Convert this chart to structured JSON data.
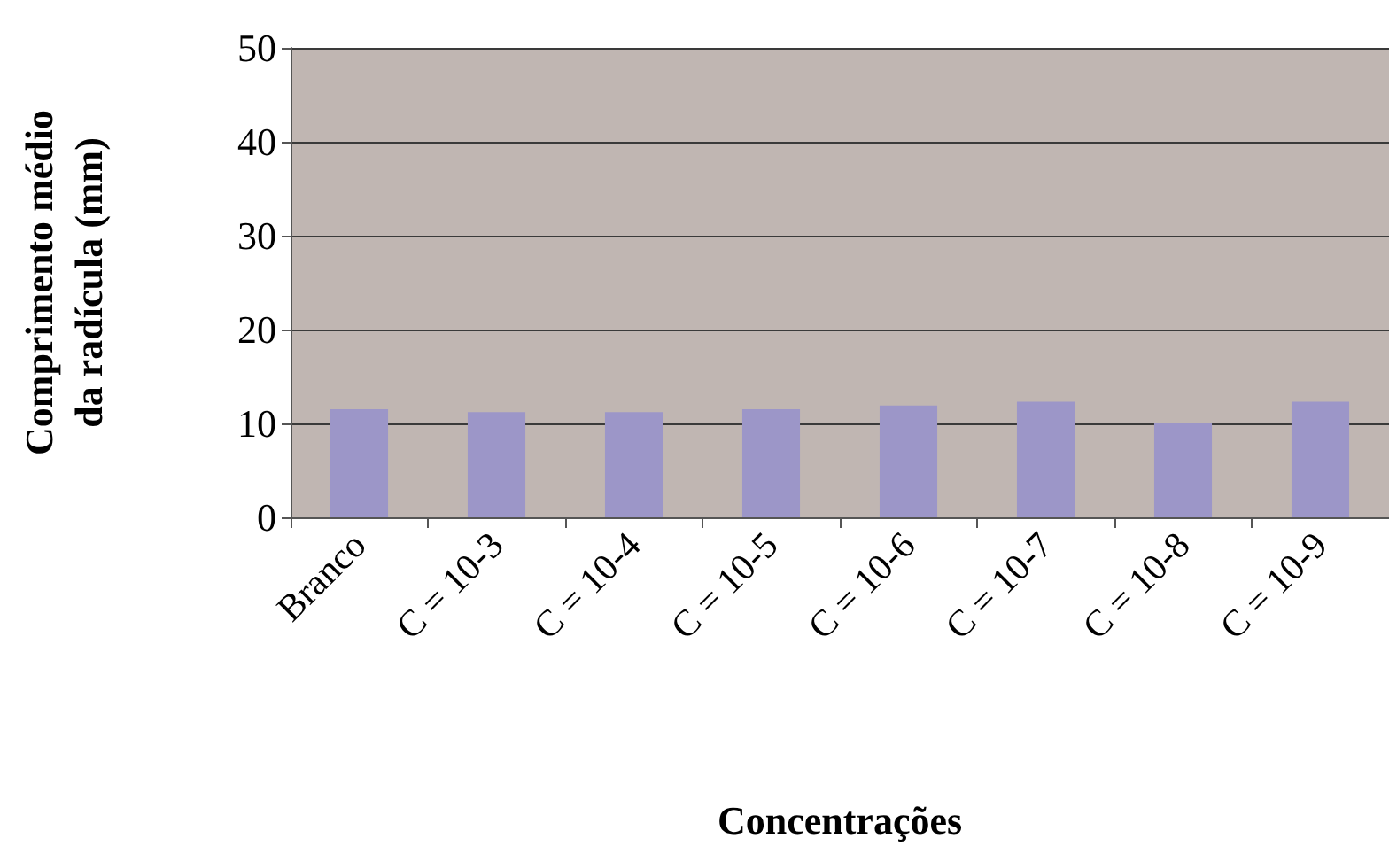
{
  "chart_data": {
    "type": "bar",
    "xlabel": "Concentrações",
    "ylabel": "Comprimento médio da radícula (mm)",
    "categories": [
      "Branco",
      "C = 10-3",
      "C = 10-4",
      "C = 10-5",
      "C = 10-6",
      "C = 10-7",
      "C = 10-8",
      "C = 10-9"
    ],
    "values": [
      11.5,
      11.2,
      11.2,
      11.5,
      11.9,
      12.3,
      10.0,
      12.3
    ],
    "color": "#9c96c8",
    "ylim": [
      0,
      50
    ],
    "yticks": [
      0,
      10,
      20,
      30,
      40,
      50
    ],
    "grid": "y"
  }
}
